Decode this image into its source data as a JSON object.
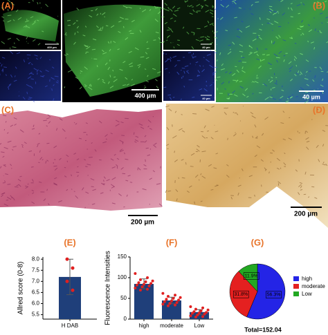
{
  "panels": {
    "A": "(A)",
    "B": "(B)",
    "C": "(C)",
    "D": "(D)"
  },
  "scale_bars": {
    "A_small": "400 µm",
    "A_large": "400 µm",
    "B_small_top": "40 µm",
    "B_small_bottom": "40 µm",
    "B_large": "40 µm",
    "C": "200 µm",
    "D": "200 µm"
  },
  "chart_data": [
    {
      "type": "bar",
      "label": "(E)",
      "ylabel": "Allred score (0-8)",
      "categories": [
        "H DAB"
      ],
      "values": [
        7.2
      ],
      "errors": [
        0.8
      ],
      "points": [
        [
          8.0,
          7.6,
          7.0,
          6.6
        ]
      ],
      "color": "#1f3f7a",
      "point_color": "#e02020",
      "ylim": [
        5.3,
        8.1
      ],
      "yticks": [
        5.5,
        {
          "value": 6,
          "label": "6.0"
        },
        6.5,
        {
          "value": 7,
          "label": "7.0"
        },
        7.5,
        {
          "value": 8,
          "label": "8.0"
        }
      ]
    },
    {
      "type": "bar",
      "label": "(F)",
      "ylabel": "Fluorescence Intensities",
      "categories": [
        "high",
        "moderate",
        "Low"
      ],
      "values": [
        85,
        45,
        17
      ],
      "errors": [
        12,
        8,
        6
      ],
      "points": [
        [
          110,
          100,
          95,
          92,
          90,
          88,
          86,
          84,
          82,
          80,
          78,
          75,
          72,
          70
        ],
        [
          62,
          58,
          55,
          52,
          50,
          48,
          46,
          44,
          42,
          40,
          38,
          36,
          34,
          32
        ],
        [
          30,
          27,
          24,
          22,
          20,
          18,
          16,
          15,
          14,
          12,
          10,
          8,
          6,
          5
        ]
      ],
      "color": "#1f3f7a",
      "point_color": "#e02020",
      "ylim": [
        0,
        150
      ],
      "yticks": [
        0,
        50,
        100,
        150
      ]
    },
    {
      "type": "pie",
      "label": "(G)",
      "labels": [
        "high",
        "moderate",
        "Low"
      ],
      "values": [
        56.3,
        31.8,
        11.9
      ],
      "value_labels": [
        "56.3%",
        "31.8%",
        "11.9%"
      ],
      "colors": [
        "#2424e6",
        "#e42020",
        "#22a822"
      ],
      "total": "Total=152.04"
    }
  ]
}
